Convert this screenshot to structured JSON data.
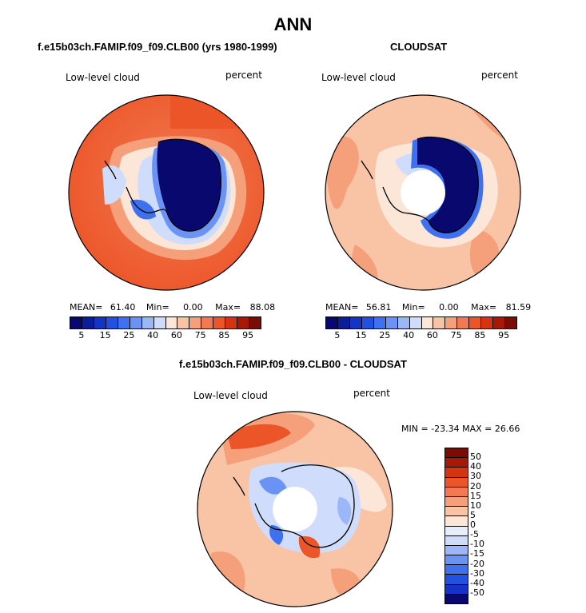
{
  "figure": {
    "main_title": "ANN",
    "panel1_title": "f.e15b03ch.FAMIP.f09_f09.CLB00 (yrs 1980-1999)",
    "panel2_title": "CLOUDSAT",
    "panel3_title": "f.e15b03ch.FAMIP.f09_f09.CLB00 - CLOUDSAT"
  },
  "chart_data": [
    {
      "type": "heatmap",
      "projection": "south-polar-stereographic",
      "variable": "Low-level cloud",
      "units": "percent",
      "stats": {
        "mean_label": "MEAN=",
        "mean": "61.40",
        "min_label": "Min=",
        "min": "0.00",
        "max_label": "Max=",
        "max": "88.08"
      },
      "levels": [
        5,
        10,
        15,
        20,
        25,
        30,
        40,
        50,
        60,
        70,
        75,
        80,
        85,
        90,
        95
      ],
      "tick_labels": [
        "5",
        "15",
        "25",
        "40",
        "60",
        "75",
        "85",
        "95"
      ],
      "colors": [
        "#08086e",
        "#0b1d9a",
        "#1533c4",
        "#2250e0",
        "#3f70f0",
        "#6b93f5",
        "#9bb7f8",
        "#cfdcfb",
        "#fbe6d7",
        "#f8c4a5",
        "#f6a07b",
        "#f27a52",
        "#ec5528",
        "#d63313",
        "#a81806",
        "#7a0c05"
      ]
    },
    {
      "type": "heatmap",
      "projection": "south-polar-stereographic",
      "variable": "Low-level cloud",
      "units": "percent",
      "stats": {
        "mean_label": "MEAN=",
        "mean": "56.81",
        "min_label": "Min=",
        "min": "0.00",
        "max_label": "Max=",
        "max": "81.59"
      },
      "levels": [
        5,
        10,
        15,
        20,
        25,
        30,
        40,
        50,
        60,
        70,
        75,
        80,
        85,
        90,
        95
      ],
      "tick_labels": [
        "5",
        "15",
        "25",
        "40",
        "60",
        "75",
        "85",
        "95"
      ],
      "colors": [
        "#08086e",
        "#0b1d9a",
        "#1533c4",
        "#2250e0",
        "#3f70f0",
        "#6b93f5",
        "#9bb7f8",
        "#cfdcfb",
        "#fbe6d7",
        "#f8c4a5",
        "#f6a07b",
        "#f27a52",
        "#ec5528",
        "#d63313",
        "#a81806",
        "#7a0c05"
      ]
    },
    {
      "type": "heatmap",
      "projection": "south-polar-stereographic",
      "variable": "Low-level cloud",
      "units": "percent",
      "stats_text": "MIN = -23.34  MAX =  26.66",
      "levels": [
        -50,
        -40,
        -30,
        -20,
        -15,
        -10,
        -5,
        0,
        5,
        10,
        15,
        20,
        30,
        40,
        50
      ],
      "tick_labels": [
        "50",
        "40",
        "30",
        "20",
        "15",
        "10",
        "5",
        "0",
        "-5",
        "-10",
        "-15",
        "-20",
        "-30",
        "-40",
        "-50"
      ],
      "colors": [
        "#7a0c05",
        "#a81806",
        "#d63313",
        "#ec5528",
        "#f27a52",
        "#f6a07b",
        "#f8c4a5",
        "#fbe6d7",
        "#e6eefc",
        "#cfdcfb",
        "#9bb7f8",
        "#6b93f5",
        "#3f70f0",
        "#2250e0",
        "#1533c4",
        "#08086e"
      ]
    }
  ]
}
